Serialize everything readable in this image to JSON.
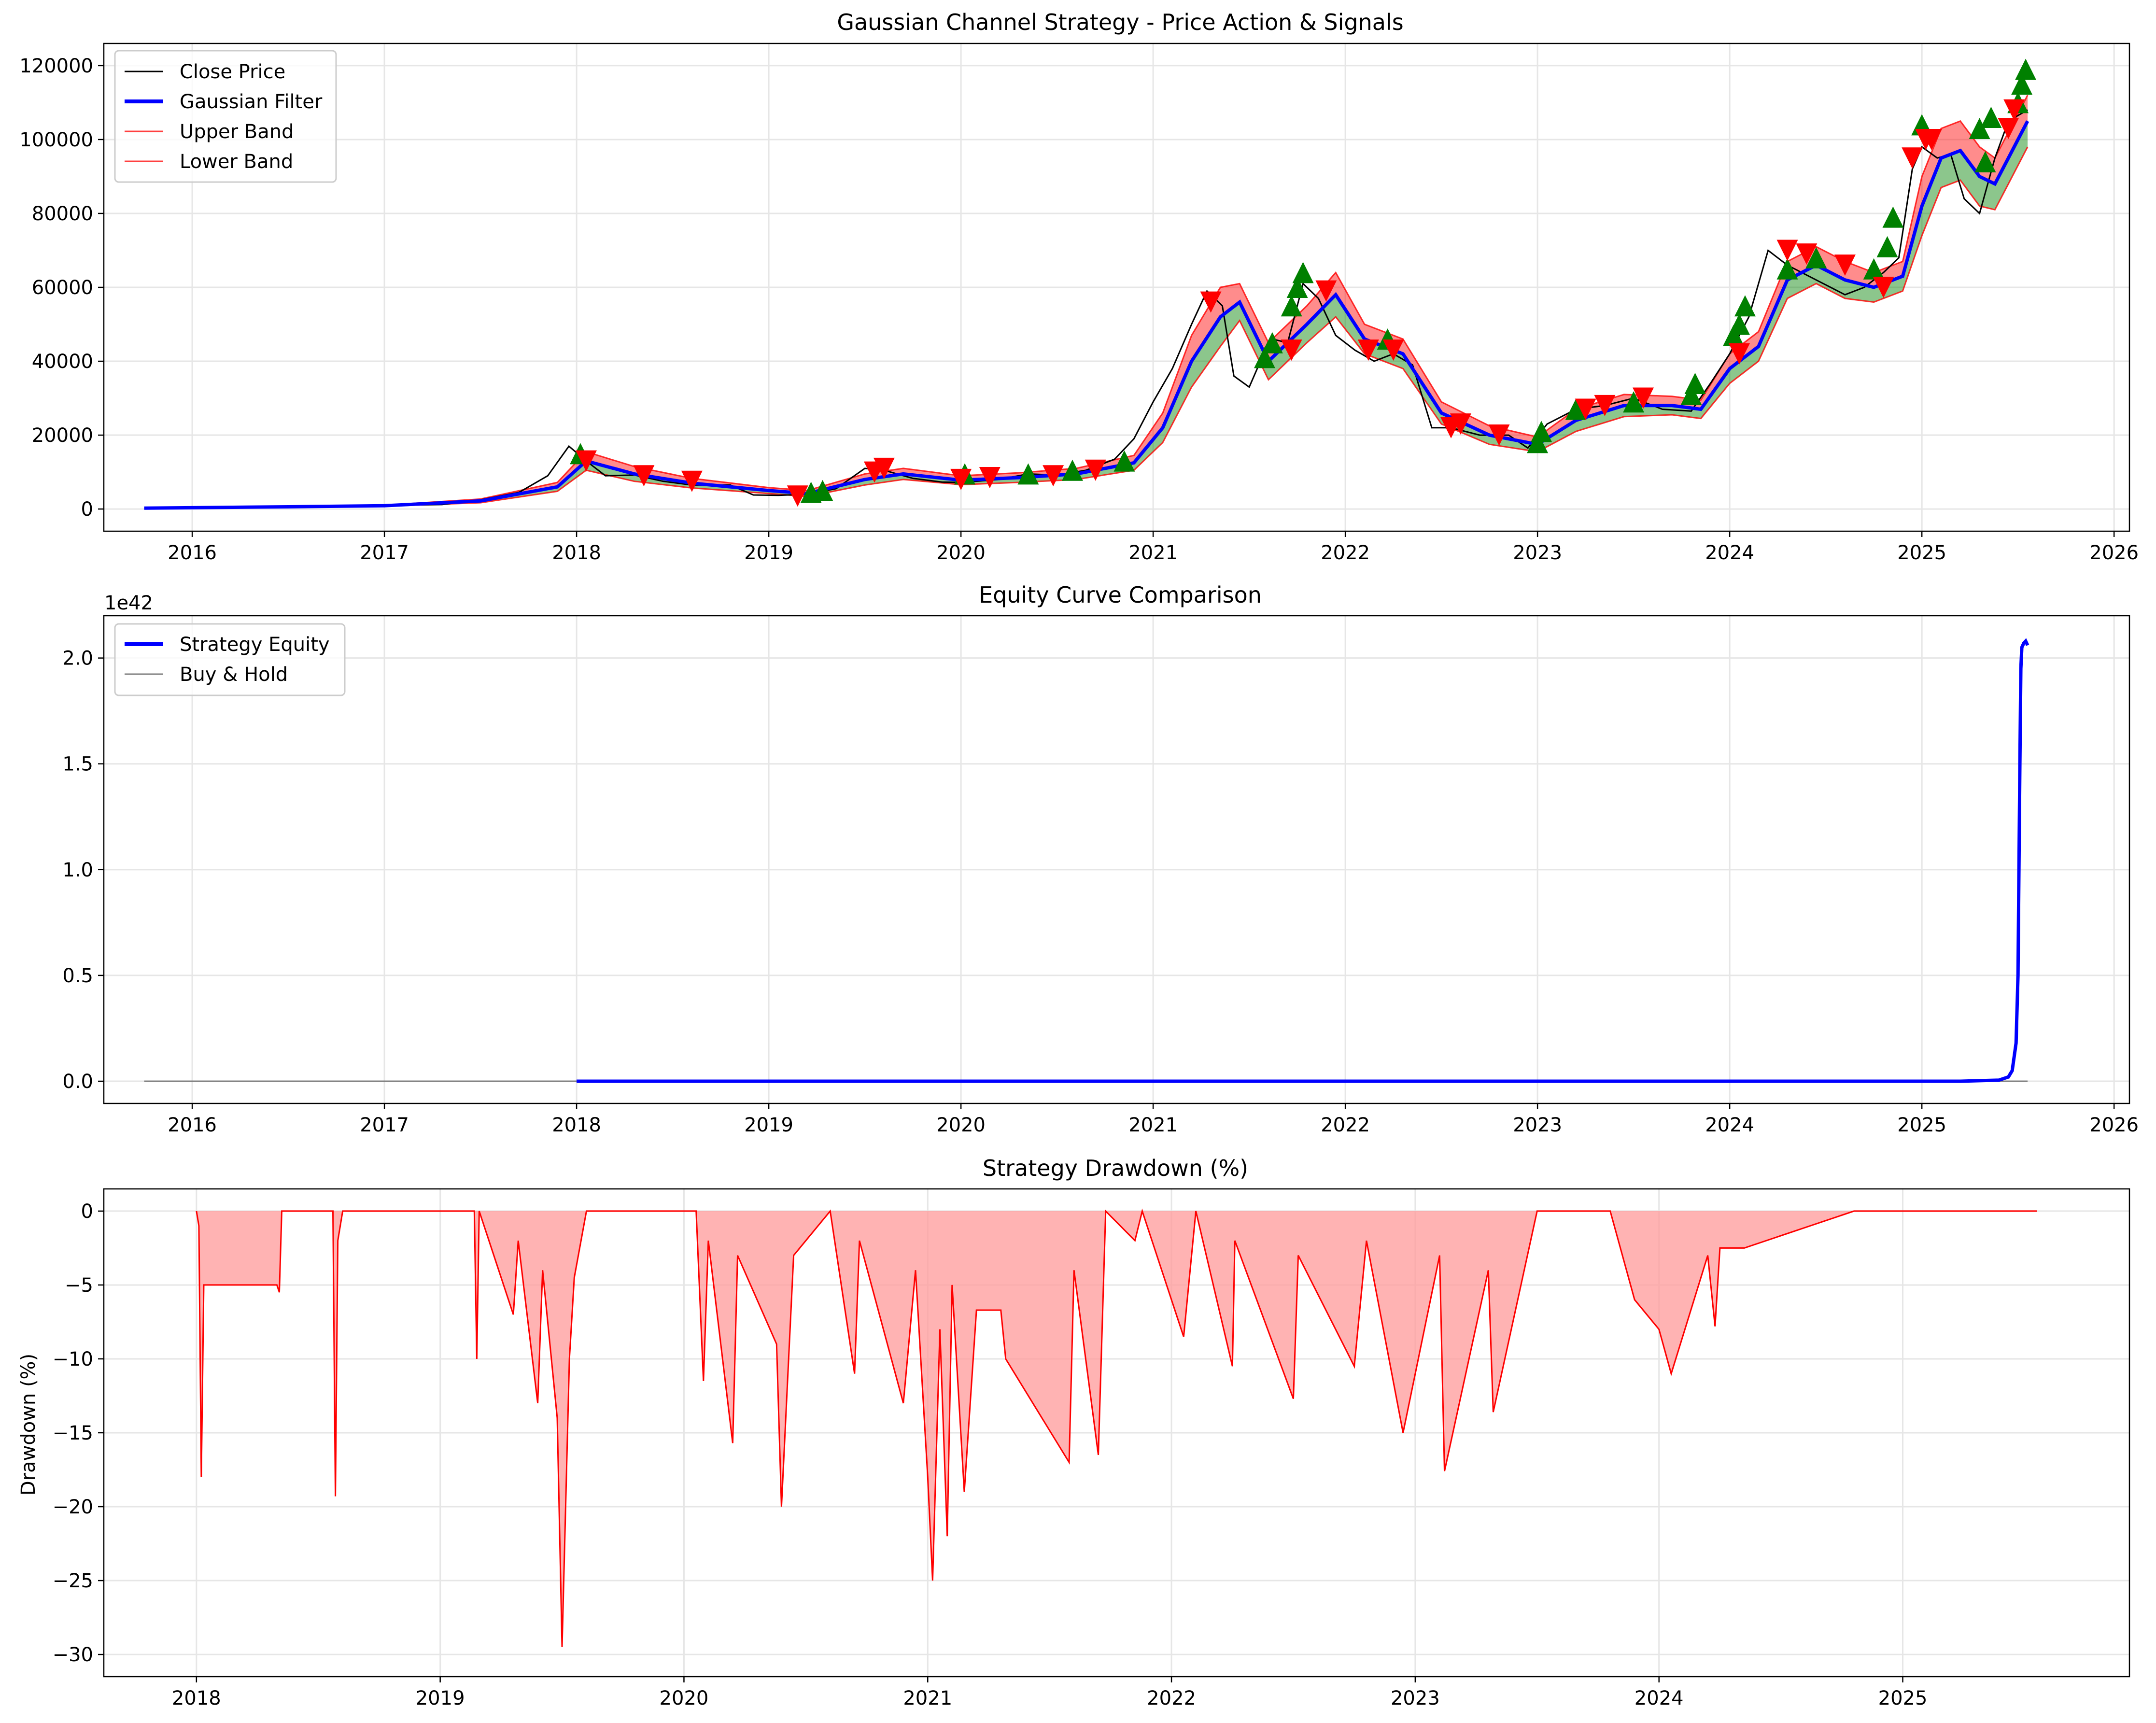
{
  "colors": {
    "close": "#000000",
    "filter": "#0000ff",
    "band": "#ff0000",
    "band_fill": "#ff0000",
    "band_fill_green": "#008000",
    "buy_marker": "#008000",
    "sell_marker": "#ff0000",
    "equity": "#0000ff",
    "buyhold": "#808080",
    "drawdown": "#ff0000",
    "drawdown_fill": "#ff9999",
    "grid": "#e6e6e6"
  },
  "chart_data": [
    {
      "type": "line",
      "title": "Gaussian Channel Strategy - Price Action & Signals",
      "xlabel": "",
      "ylabel": "",
      "xlim": [
        2015.54,
        2026.08
      ],
      "ylim": [
        -6000,
        126000
      ],
      "x_ticks": [
        "2016",
        "2017",
        "2018",
        "2019",
        "2020",
        "2021",
        "2022",
        "2023",
        "2024",
        "2025",
        "2026"
      ],
      "y_ticks": [
        "0",
        "20000",
        "40000",
        "60000",
        "80000",
        "100000",
        "120000"
      ],
      "grid": true,
      "legend_position": "top-left",
      "legend": [
        "Close Price",
        "Gaussian Filter",
        "Upper Band",
        "Lower Band"
      ],
      "series": [
        {
          "name": "Close Price",
          "x": [
            2015.75,
            2016.0,
            2016.5,
            2017.0,
            2017.3,
            2017.5,
            2017.7,
            2017.85,
            2017.96,
            2018.05,
            2018.15,
            2018.3,
            2018.45,
            2018.6,
            2018.8,
            2018.92,
            2019.05,
            2019.2,
            2019.35,
            2019.5,
            2019.6,
            2019.75,
            2019.9,
            2020.0,
            2020.2,
            2020.35,
            2020.5,
            2020.65,
            2020.8,
            2020.9,
            2021.0,
            2021.1,
            2021.2,
            2021.28,
            2021.36,
            2021.42,
            2021.5,
            2021.55,
            2021.62,
            2021.7,
            2021.78,
            2021.86,
            2021.95,
            2022.05,
            2022.15,
            2022.25,
            2022.35,
            2022.45,
            2022.55,
            2022.7,
            2022.85,
            2022.95,
            2023.05,
            2023.2,
            2023.35,
            2023.5,
            2023.65,
            2023.8,
            2023.9,
            2024.0,
            2024.1,
            2024.2,
            2024.3,
            2024.45,
            2024.6,
            2024.7,
            2024.8,
            2024.88,
            2024.95,
            2025.0,
            2025.08,
            2025.15,
            2025.22,
            2025.3,
            2025.38,
            2025.45,
            2025.55
          ],
          "values": [
            230,
            430,
            650,
            1000,
            1200,
            2500,
            4500,
            9000,
            17000,
            13000,
            9000,
            9200,
            7500,
            6500,
            6500,
            3800,
            3700,
            4000,
            5500,
            11000,
            10500,
            8300,
            7300,
            7200,
            8000,
            9500,
            9200,
            10500,
            13500,
            19000,
            29000,
            38000,
            50000,
            59000,
            55000,
            36000,
            33000,
            39000,
            46000,
            45000,
            61000,
            57000,
            47000,
            43000,
            40000,
            42000,
            39000,
            22000,
            22000,
            20000,
            20000,
            16500,
            23000,
            27000,
            28000,
            30000,
            27000,
            26500,
            34000,
            42000,
            52000,
            70000,
            66000,
            62000,
            58000,
            60000,
            64000,
            68000,
            92000,
            98000,
            95000,
            96000,
            84000,
            80000,
            95000,
            105000,
            108000
          ]
        },
        {
          "name": "Gaussian Filter",
          "x": [
            2015.75,
            2016.5,
            2017.0,
            2017.5,
            2017.9,
            2018.05,
            2018.3,
            2018.6,
            2019.0,
            2019.2,
            2019.5,
            2019.7,
            2020.0,
            2020.3,
            2020.6,
            2020.9,
            2021.05,
            2021.2,
            2021.35,
            2021.45,
            2021.6,
            2021.8,
            2021.95,
            2022.1,
            2022.3,
            2022.5,
            2022.75,
            2023.0,
            2023.2,
            2023.45,
            2023.7,
            2023.85,
            2024.0,
            2024.15,
            2024.3,
            2024.45,
            2024.6,
            2024.75,
            2024.9,
            2025.0,
            2025.1,
            2025.2,
            2025.3,
            2025.38,
            2025.45,
            2025.55
          ],
          "values": [
            250,
            600,
            900,
            2200,
            6000,
            13000,
            9500,
            7000,
            5000,
            4200,
            8000,
            9500,
            7800,
            8500,
            9500,
            12500,
            22000,
            40000,
            52000,
            56000,
            40000,
            50000,
            58000,
            46000,
            42000,
            26000,
            20000,
            17500,
            24000,
            28000,
            28000,
            27000,
            38000,
            44000,
            62000,
            66000,
            62000,
            60000,
            63000,
            82000,
            95000,
            97000,
            90000,
            88000,
            95000,
            105000
          ]
        },
        {
          "name": "Upper Band",
          "x": [
            2015.75,
            2016.5,
            2017.0,
            2017.5,
            2017.9,
            2018.05,
            2018.3,
            2018.6,
            2019.0,
            2019.2,
            2019.5,
            2019.7,
            2020.0,
            2020.3,
            2020.6,
            2020.9,
            2021.05,
            2021.2,
            2021.35,
            2021.45,
            2021.6,
            2021.8,
            2021.95,
            2022.1,
            2022.3,
            2022.5,
            2022.75,
            2023.0,
            2023.2,
            2023.45,
            2023.7,
            2023.85,
            2024.0,
            2024.15,
            2024.3,
            2024.45,
            2024.6,
            2024.75,
            2024.9,
            2025.0,
            2025.1,
            2025.2,
            2025.3,
            2025.38,
            2025.45,
            2025.55
          ],
          "values": [
            300,
            700,
            1050,
            2700,
            7200,
            15500,
            11500,
            8300,
            5800,
            5000,
            9500,
            11000,
            9000,
            9800,
            11000,
            14500,
            26000,
            47000,
            60000,
            61000,
            45000,
            55000,
            64000,
            50000,
            46000,
            29000,
            22500,
            19500,
            27000,
            31000,
            30500,
            29500,
            42000,
            48000,
            67000,
            71000,
            67000,
            64000,
            67000,
            90000,
            103000,
            105000,
            98000,
            95000,
            102000,
            112000
          ]
        },
        {
          "name": "Lower Band",
          "x": [
            2015.75,
            2016.5,
            2017.0,
            2017.5,
            2017.9,
            2018.05,
            2018.3,
            2018.6,
            2019.0,
            2019.2,
            2019.5,
            2019.7,
            2020.0,
            2020.3,
            2020.6,
            2020.9,
            2021.05,
            2021.2,
            2021.35,
            2021.45,
            2021.6,
            2021.8,
            2021.95,
            2022.1,
            2022.3,
            2022.5,
            2022.75,
            2023.0,
            2023.2,
            2023.45,
            2023.7,
            2023.85,
            2024.0,
            2024.15,
            2024.3,
            2024.45,
            2024.6,
            2024.75,
            2024.9,
            2025.0,
            2025.1,
            2025.2,
            2025.3,
            2025.38,
            2025.45,
            2025.55
          ],
          "values": [
            200,
            500,
            750,
            1700,
            4800,
            10500,
            7500,
            5700,
            4200,
            3400,
            6500,
            8000,
            6600,
            7200,
            8000,
            10500,
            18000,
            33000,
            44000,
            51000,
            35000,
            45000,
            52000,
            42000,
            38000,
            23000,
            17500,
            15500,
            21000,
            25000,
            25500,
            24500,
            34000,
            40000,
            57000,
            61000,
            57000,
            56000,
            59000,
            74000,
            87000,
            89000,
            82000,
            81000,
            88000,
            98000
          ]
        }
      ],
      "buy_signals": {
        "x": [
          2018.02,
          2019.22,
          2019.28,
          2020.02,
          2020.35,
          2020.58,
          2020.85,
          2021.58,
          2021.62,
          2021.72,
          2021.75,
          2021.78,
          2022.22,
          2023.0,
          2023.02,
          2023.2,
          2023.5,
          2023.8,
          2023.82,
          2024.02,
          2024.05,
          2024.08,
          2024.3,
          2024.45,
          2024.75,
          2024.82,
          2024.85,
          2025.0,
          2025.3,
          2025.33,
          2025.36,
          2025.5,
          2025.52,
          2025.54
        ],
        "values": [
          15000,
          4500,
          5000,
          9500,
          9500,
          10500,
          13000,
          41000,
          45000,
          55000,
          60000,
          64000,
          46000,
          18000,
          21000,
          27000,
          29000,
          31000,
          34000,
          47000,
          50000,
          55000,
          65000,
          68000,
          65000,
          71000,
          79000,
          104000,
          103000,
          94000,
          106000,
          110000,
          115000,
          119000
        ]
      },
      "sell_signals": {
        "x": [
          2018.05,
          2018.35,
          2018.6,
          2019.15,
          2019.55,
          2019.6,
          2020.0,
          2020.15,
          2020.48,
          2020.7,
          2021.3,
          2021.72,
          2021.9,
          2022.12,
          2022.25,
          2022.55,
          2022.6,
          2022.8,
          2023.25,
          2023.35,
          2023.55,
          2024.05,
          2024.3,
          2024.4,
          2024.6,
          2024.8,
          2024.95,
          2025.02,
          2025.05,
          2025.45,
          2025.48
        ],
        "values": [
          13000,
          9000,
          7500,
          3500,
          10000,
          11000,
          8000,
          8500,
          9000,
          10500,
          56000,
          43000,
          59000,
          43000,
          43000,
          22000,
          23000,
          20000,
          27000,
          28000,
          30000,
          42000,
          70000,
          69000,
          66000,
          60000,
          95000,
          100000,
          100000,
          103000,
          108000
        ]
      }
    },
    {
      "type": "line",
      "title": "Equity Curve Comparison",
      "xlabel": "",
      "ylabel": "",
      "offset_text": "1e42",
      "xlim": [
        2015.54,
        2026.08
      ],
      "ylim": [
        -0.105,
        2.2
      ],
      "x_ticks": [
        "2016",
        "2017",
        "2018",
        "2019",
        "2020",
        "2021",
        "2022",
        "2023",
        "2024",
        "2025",
        "2026"
      ],
      "y_ticks": [
        "0.0",
        "0.5",
        "1.0",
        "1.5",
        "2.0"
      ],
      "grid": true,
      "legend_position": "top-left",
      "legend": [
        "Strategy Equity",
        "Buy & Hold"
      ],
      "series": [
        {
          "name": "Strategy Equity",
          "x": [
            2018.0,
            2024.0,
            2025.2,
            2025.4,
            2025.45,
            2025.47,
            2025.49,
            2025.5,
            2025.51,
            2025.515,
            2025.52,
            2025.53,
            2025.54,
            2025.55
          ],
          "values": [
            0.0,
            0.0,
            0.0,
            0.005,
            0.02,
            0.05,
            0.18,
            0.5,
            1.5,
            1.95,
            2.05,
            2.07,
            2.08,
            2.06
          ]
        },
        {
          "name": "Buy & Hold",
          "x": [
            2015.75,
            2025.55
          ],
          "values": [
            0.0,
            0.0
          ]
        }
      ]
    },
    {
      "type": "area",
      "title": "Strategy Drawdown (%)",
      "xlabel": "",
      "ylabel": "Drawdown (%)",
      "xlim": [
        2017.62,
        2025.93
      ],
      "ylim": [
        -31.5,
        1.5
      ],
      "x_ticks": [
        "2018",
        "2019",
        "2020",
        "2021",
        "2022",
        "2023",
        "2024",
        "2025"
      ],
      "y_ticks": [
        "0",
        "−5",
        "−10",
        "−15",
        "−20",
        "−25",
        "−30"
      ],
      "grid": true,
      "series": [
        {
          "name": "",
          "x": [
            2018.0,
            2018.01,
            2018.02,
            2018.03,
            2018.33,
            2018.34,
            2018.35,
            2018.56,
            2018.57,
            2018.58,
            2018.6,
            2019.14,
            2019.15,
            2019.16,
            2019.3,
            2019.32,
            2019.4,
            2019.42,
            2019.48,
            2019.5,
            2019.53,
            2019.55,
            2019.6,
            2020.05,
            2020.08,
            2020.1,
            2020.2,
            2020.22,
            2020.38,
            2020.4,
            2020.45,
            2020.6,
            2020.7,
            2020.72,
            2020.9,
            2020.95,
            2021.0,
            2021.02,
            2021.05,
            2021.08,
            2021.1,
            2021.15,
            2021.2,
            2021.22,
            2021.3,
            2021.32,
            2021.58,
            2021.6,
            2021.7,
            2021.73,
            2021.85,
            2021.88,
            2022.05,
            2022.1,
            2022.25,
            2022.26,
            2022.5,
            2022.52,
            2022.75,
            2022.8,
            2022.95,
            2023.1,
            2023.12,
            2023.3,
            2023.32,
            2023.5,
            2023.8,
            2023.9,
            2024.0,
            2024.05,
            2024.2,
            2024.23,
            2024.25,
            2024.35,
            2024.8,
            2024.85,
            2024.93,
            2025.0,
            2025.2,
            2025.35,
            2025.38,
            2025.5,
            2025.55
          ],
          "values": [
            0,
            -1,
            -18,
            -5,
            -5,
            -5.5,
            0,
            0,
            -19.3,
            -2,
            0,
            0,
            -10,
            0,
            -7,
            -2,
            -13,
            -4,
            -14,
            -29.5,
            -10,
            -4.5,
            0,
            0,
            -11.5,
            -2,
            -15.7,
            -3,
            -9,
            -20,
            -3,
            0,
            -11,
            -2,
            -13,
            -4,
            -18,
            -25,
            -8,
            -22,
            -5,
            -19,
            -6.7,
            -6.7,
            -6.7,
            -10,
            -17,
            -4,
            -16.5,
            0,
            -2,
            0,
            -8.5,
            0,
            -10.5,
            -2,
            -12.7,
            -3,
            -10.5,
            -2,
            -15,
            -3,
            -17.6,
            -4,
            -13.6,
            0,
            0,
            -6,
            -8,
            -11,
            -3,
            -7.8,
            -2.5,
            -2.5,
            0,
            0,
            0,
            0,
            0,
            0,
            0,
            0,
            0
          ]
        }
      ]
    }
  ]
}
